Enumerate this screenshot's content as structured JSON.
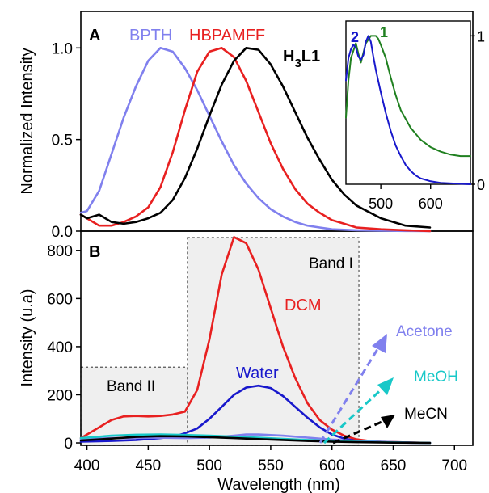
{
  "chart_data": [
    {
      "panel": "A",
      "type": "line",
      "ylabel": "Normalized Intensity",
      "xlim": [
        395,
        715
      ],
      "ylim": [
        0,
        1.2
      ],
      "yticks": [
        "0.0",
        "0.5",
        "1.0"
      ],
      "series": [
        {
          "name": "BPTH",
          "color": "#8080ee",
          "x": [
            395,
            400,
            410,
            420,
            430,
            440,
            450,
            460,
            470,
            480,
            490,
            500,
            510,
            520,
            530,
            540,
            550,
            560,
            570,
            580,
            590,
            600,
            620,
            640,
            660,
            680
          ],
          "y": [
            0.1,
            0.11,
            0.22,
            0.42,
            0.62,
            0.79,
            0.93,
            1.0,
            0.98,
            0.89,
            0.77,
            0.63,
            0.49,
            0.36,
            0.26,
            0.18,
            0.12,
            0.08,
            0.05,
            0.03,
            0.02,
            0.01,
            0.005,
            0.002,
            0.001,
            0.0
          ]
        },
        {
          "name": "HBPAMFF",
          "color": "#e82020",
          "x": [
            395,
            410,
            420,
            430,
            440,
            450,
            460,
            470,
            480,
            490,
            500,
            510,
            520,
            530,
            540,
            550,
            560,
            570,
            580,
            590,
            600,
            610,
            620,
            640,
            660,
            680
          ],
          "y": [
            0.09,
            0.03,
            0.03,
            0.05,
            0.08,
            0.13,
            0.24,
            0.43,
            0.66,
            0.87,
            0.98,
            1.0,
            0.95,
            0.82,
            0.65,
            0.48,
            0.34,
            0.23,
            0.15,
            0.1,
            0.06,
            0.04,
            0.02,
            0.01,
            0.005,
            0.0
          ]
        },
        {
          "name": "H₃L1",
          "color": "#000000",
          "x": [
            395,
            400,
            405,
            410,
            415,
            420,
            430,
            440,
            450,
            460,
            470,
            480,
            490,
            500,
            510,
            520,
            530,
            540,
            550,
            560,
            570,
            580,
            590,
            600,
            610,
            620,
            640,
            660,
            680
          ],
          "y": [
            0.09,
            0.07,
            0.08,
            0.09,
            0.07,
            0.05,
            0.04,
            0.05,
            0.07,
            0.1,
            0.17,
            0.29,
            0.45,
            0.63,
            0.8,
            0.93,
            1.0,
            0.99,
            0.91,
            0.79,
            0.65,
            0.51,
            0.39,
            0.28,
            0.2,
            0.14,
            0.07,
            0.03,
            0.02
          ]
        }
      ]
    },
    {
      "panel": "inset",
      "type": "line",
      "xlim": [
        430,
        680
      ],
      "ylim": [
        0,
        1.1
      ],
      "xticks": [
        "500",
        "600"
      ],
      "yticks": [
        "0",
        "1"
      ],
      "series": [
        {
          "name": "1",
          "color": "#208020",
          "x": [
            430,
            435,
            440,
            450,
            455,
            460,
            470,
            480,
            490,
            495,
            500,
            510,
            520,
            530,
            540,
            560,
            580,
            600,
            620,
            640,
            660,
            680
          ],
          "y": [
            0.45,
            0.7,
            0.85,
            0.95,
            0.88,
            0.82,
            0.95,
            1.0,
            1.0,
            0.98,
            0.94,
            0.85,
            0.72,
            0.6,
            0.5,
            0.38,
            0.3,
            0.25,
            0.22,
            0.2,
            0.19,
            0.19
          ]
        },
        {
          "name": "2",
          "color": "#1818cc",
          "x": [
            430,
            435,
            440,
            445,
            450,
            455,
            460,
            465,
            470,
            475,
            480,
            485,
            490,
            500,
            510,
            520,
            530,
            540,
            550,
            560,
            570,
            580,
            590,
            600,
            620,
            650,
            680
          ],
          "y": [
            0.7,
            0.85,
            0.91,
            0.94,
            0.92,
            0.86,
            0.84,
            0.87,
            0.96,
            1.0,
            0.96,
            0.86,
            0.77,
            0.62,
            0.48,
            0.36,
            0.26,
            0.19,
            0.13,
            0.09,
            0.06,
            0.04,
            0.03,
            0.02,
            0.01,
            0.005,
            0.0
          ]
        }
      ],
      "labels": [
        {
          "text": "2",
          "color": "#1818cc"
        },
        {
          "text": "1",
          "color": "#208020"
        }
      ]
    },
    {
      "panel": "B",
      "type": "line",
      "xlabel": "Wavelength (nm)",
      "ylabel": "Intensity (u.a)",
      "xlim": [
        395,
        715
      ],
      "ylim": [
        -10,
        880
      ],
      "xticks": [
        "400",
        "450",
        "500",
        "550",
        "600",
        "650",
        "700"
      ],
      "yticks": [
        "0",
        "200",
        "400",
        "600",
        "800"
      ],
      "bands": [
        {
          "label": "Band I",
          "x": [
            482,
            622
          ],
          "y": [
            0,
            880
          ]
        },
        {
          "label": "Band II",
          "x": [
            395,
            482
          ],
          "y": [
            0,
            315
          ]
        }
      ],
      "series": [
        {
          "name": "DCM",
          "color": "#e82020",
          "x": [
            395,
            400,
            410,
            420,
            430,
            440,
            450,
            460,
            470,
            480,
            490,
            500,
            510,
            520,
            530,
            540,
            550,
            560,
            570,
            580,
            590,
            600,
            610,
            620,
            630,
            640,
            660,
            680
          ],
          "y": [
            20,
            35,
            65,
            95,
            110,
            112,
            110,
            112,
            118,
            130,
            220,
            430,
            700,
            855,
            830,
            720,
            560,
            400,
            270,
            165,
            95,
            55,
            30,
            15,
            8,
            5,
            2,
            0
          ]
        },
        {
          "name": "Water",
          "color": "#1818cc",
          "x": [
            395,
            420,
            440,
            460,
            470,
            480,
            490,
            500,
            510,
            520,
            530,
            540,
            550,
            560,
            570,
            580,
            590,
            600,
            610,
            620,
            640,
            660,
            680
          ],
          "y": [
            5,
            8,
            12,
            20,
            25,
            40,
            60,
            100,
            150,
            200,
            230,
            238,
            228,
            195,
            150,
            105,
            65,
            35,
            18,
            8,
            3,
            1,
            0
          ]
        },
        {
          "name": "Acetone",
          "color": "#8080ee",
          "x": [
            395,
            420,
            450,
            480,
            500,
            520,
            530,
            540,
            560,
            580,
            600,
            620,
            650,
            680
          ],
          "y": [
            15,
            20,
            22,
            20,
            22,
            30,
            35,
            35,
            30,
            22,
            14,
            8,
            3,
            0
          ]
        },
        {
          "name": "MeOH",
          "color": "#18c8c8",
          "x": [
            395,
            420,
            440,
            460,
            480,
            500,
            520,
            540,
            560,
            580,
            600,
            620,
            650,
            680
          ],
          "y": [
            20,
            30,
            34,
            35,
            33,
            30,
            26,
            22,
            17,
            12,
            8,
            5,
            2,
            0
          ]
        },
        {
          "name": "MeCN",
          "color": "#000000",
          "x": [
            395,
            420,
            440,
            460,
            480,
            500,
            520,
            540,
            560,
            580,
            600,
            620,
            650,
            680
          ],
          "y": [
            10,
            18,
            25,
            28,
            27,
            24,
            20,
            16,
            12,
            8,
            5,
            3,
            1,
            0
          ]
        }
      ]
    }
  ],
  "panel_labels": {
    "a": "A",
    "b": "B"
  },
  "labels": {
    "bpth": "BPTH",
    "hbpamff": "HBPAMFF",
    "h3l1_main": "H",
    "h3l1_sub": "3",
    "h3l1_tail": "L1",
    "band1": "Band I",
    "band2": "Band II",
    "dcm": "DCM",
    "water": "Water",
    "acetone": "Acetone",
    "meoh": "MeOH",
    "mecn": "MeCN"
  },
  "colors": {
    "band_fill": "#efefef",
    "axis": "#000000"
  }
}
